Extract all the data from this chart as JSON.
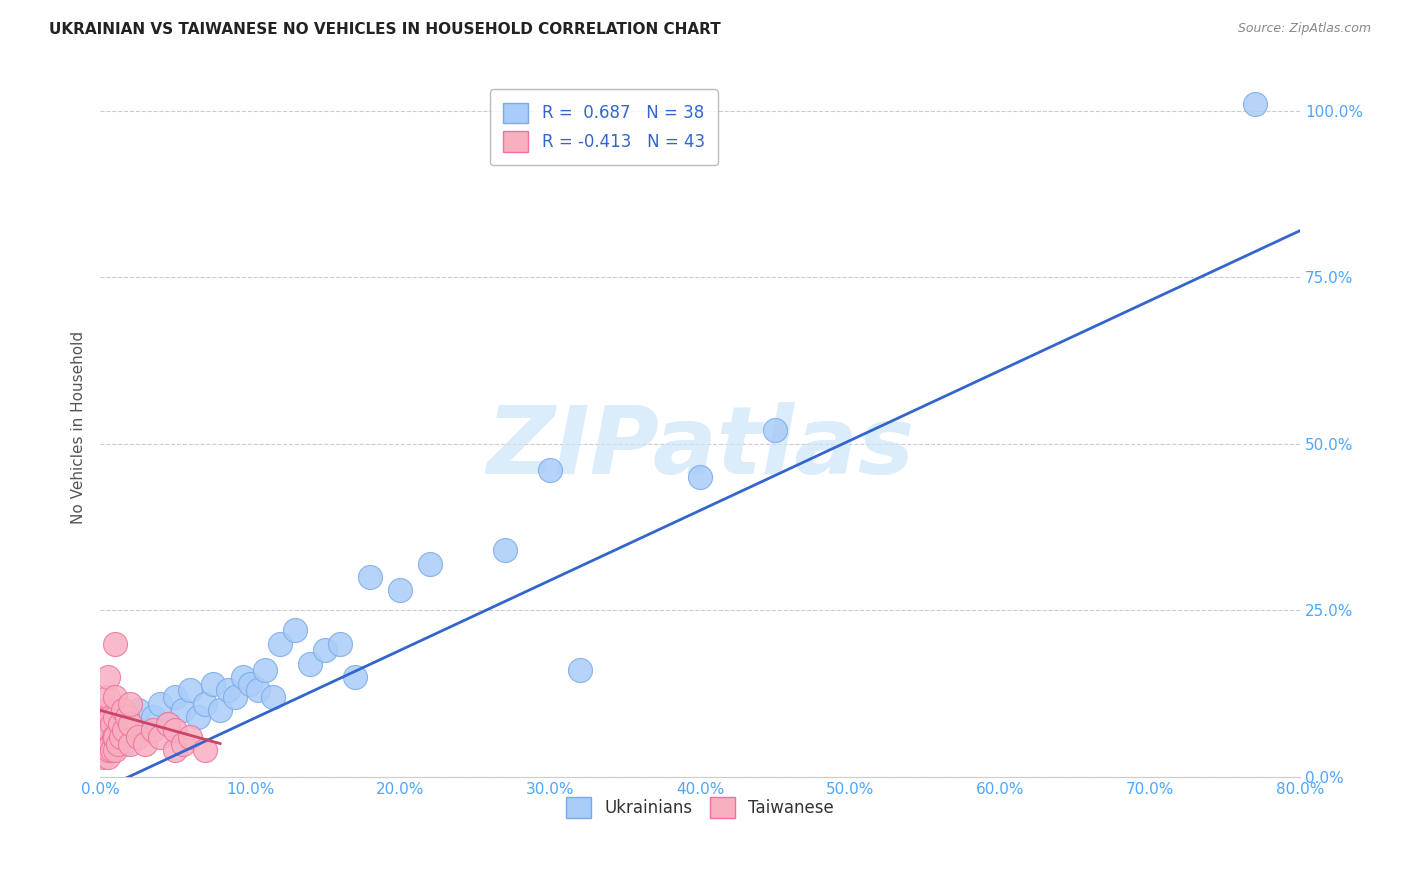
{
  "title": "UKRAINIAN VS TAIWANESE NO VEHICLES IN HOUSEHOLD CORRELATION CHART",
  "source": "Source: ZipAtlas.com",
  "tick_color": "#4da6ff",
  "ylabel": "No Vehicles in Household",
  "xmin": 0.0,
  "xmax": 0.8,
  "ymin": 0.0,
  "ymax": 1.05,
  "yticks": [
    0.0,
    0.25,
    0.5,
    0.75,
    1.0
  ],
  "xticks": [
    0.0,
    0.1,
    0.2,
    0.3,
    0.4,
    0.5,
    0.6,
    0.7,
    0.8
  ],
  "blue_r": 0.687,
  "blue_n": 38,
  "pink_r": -0.413,
  "pink_n": 43,
  "blue_color": "#aaccf8",
  "blue_edge": "#7aaae8",
  "pink_color": "#f8b0c0",
  "pink_edge": "#f070a0",
  "trend_blue": "#3366cc",
  "trend_pink": "#cc4466",
  "watermark_color": "#cce4f8",
  "watermark": "ZIPatlas",
  "legend_label_blue": "Ukrainians",
  "legend_label_pink": "Taiwanese",
  "ukrainians_x": [
    0.005,
    0.01,
    0.015,
    0.02,
    0.025,
    0.03,
    0.035,
    0.04,
    0.045,
    0.05,
    0.055,
    0.06,
    0.065,
    0.07,
    0.075,
    0.08,
    0.085,
    0.09,
    0.095,
    0.1,
    0.105,
    0.11,
    0.115,
    0.12,
    0.13,
    0.14,
    0.15,
    0.16,
    0.17,
    0.18,
    0.2,
    0.22,
    0.27,
    0.3,
    0.32,
    0.4,
    0.45,
    0.77
  ],
  "ukrainians_y": [
    0.04,
    0.06,
    0.05,
    0.08,
    0.1,
    0.07,
    0.09,
    0.11,
    0.08,
    0.12,
    0.1,
    0.13,
    0.09,
    0.11,
    0.14,
    0.1,
    0.13,
    0.12,
    0.15,
    0.14,
    0.13,
    0.16,
    0.12,
    0.2,
    0.22,
    0.17,
    0.19,
    0.2,
    0.15,
    0.3,
    0.28,
    0.32,
    0.34,
    0.46,
    0.16,
    0.45,
    0.52,
    1.01
  ],
  "taiwanese_x": [
    0.002,
    0.002,
    0.003,
    0.003,
    0.004,
    0.004,
    0.005,
    0.005,
    0.005,
    0.005,
    0.005,
    0.005,
    0.006,
    0.006,
    0.007,
    0.007,
    0.008,
    0.008,
    0.009,
    0.01,
    0.01,
    0.01,
    0.01,
    0.01,
    0.012,
    0.013,
    0.014,
    0.015,
    0.016,
    0.018,
    0.02,
    0.02,
    0.02,
    0.025,
    0.03,
    0.035,
    0.04,
    0.045,
    0.05,
    0.05,
    0.055,
    0.06,
    0.07
  ],
  "taiwanese_y": [
    0.03,
    0.06,
    0.04,
    0.08,
    0.05,
    0.1,
    0.03,
    0.05,
    0.07,
    0.09,
    0.12,
    0.15,
    0.04,
    0.07,
    0.05,
    0.09,
    0.04,
    0.08,
    0.06,
    0.04,
    0.06,
    0.09,
    0.12,
    0.2,
    0.05,
    0.08,
    0.06,
    0.1,
    0.07,
    0.09,
    0.05,
    0.08,
    0.11,
    0.06,
    0.05,
    0.07,
    0.06,
    0.08,
    0.04,
    0.07,
    0.05,
    0.06,
    0.04
  ],
  "trend_blue_x0": 0.0,
  "trend_blue_x1": 0.8,
  "trend_blue_y0": -0.02,
  "trend_blue_y1": 0.82,
  "trend_pink_x0": 0.0,
  "trend_pink_x1": 0.08,
  "trend_pink_y0": 0.1,
  "trend_pink_y1": 0.05
}
